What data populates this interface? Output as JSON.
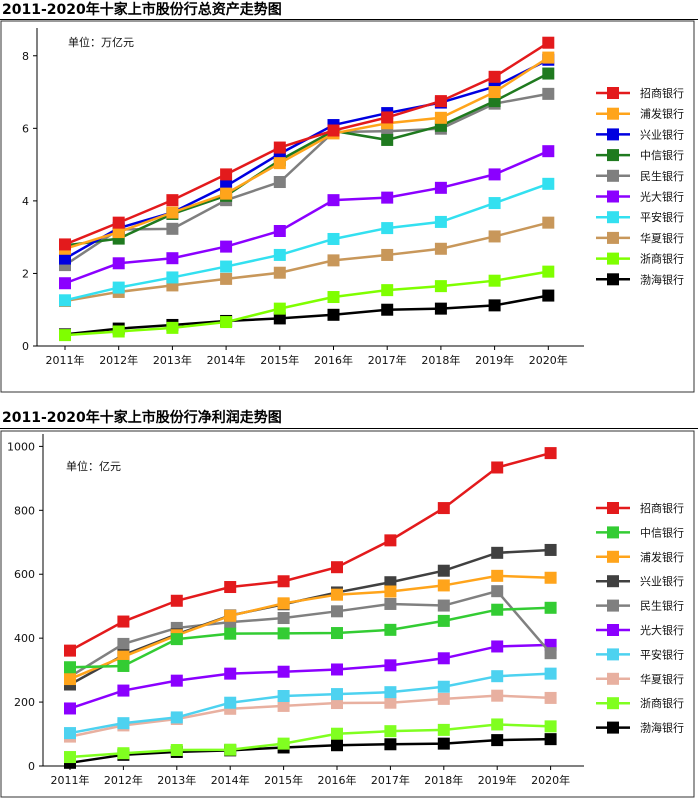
{
  "chart_data": [
    {
      "type": "line",
      "title": "2011-2020年十家上市股份行总资产走势图",
      "unit_label": "单位：万亿元",
      "categories": [
        "2011年",
        "2012年",
        "2013年",
        "2014年",
        "2015年",
        "2016年",
        "2017年",
        "2018年",
        "2019年",
        "2020年"
      ],
      "ylim": [
        0,
        8.6
      ],
      "yticks": [
        0,
        2,
        4,
        6,
        8
      ],
      "grid": false,
      "legend_position": "right",
      "series": [
        {
          "name": "招商银行",
          "color": "#e31a1c",
          "values": [
            2.8,
            3.4,
            4.02,
            4.73,
            5.47,
            5.94,
            6.3,
            6.75,
            7.42,
            8.36
          ]
        },
        {
          "name": "浦发银行",
          "color": "#ffa41b",
          "values": [
            2.68,
            3.14,
            3.68,
            4.2,
            5.04,
            5.86,
            6.14,
            6.29,
            7.0,
            7.95
          ]
        },
        {
          "name": "兴业银行",
          "color": "#0000e0",
          "values": [
            2.41,
            3.25,
            3.68,
            4.41,
            5.3,
            6.09,
            6.42,
            6.71,
            7.15,
            7.89
          ]
        },
        {
          "name": "中信银行",
          "color": "#1f7a1f",
          "values": [
            2.77,
            2.96,
            3.64,
            4.14,
            5.12,
            5.93,
            5.68,
            6.07,
            6.75,
            7.51
          ]
        },
        {
          "name": "民生银行",
          "color": "#7f7f7f",
          "values": [
            2.23,
            3.21,
            3.23,
            4.02,
            4.52,
            5.9,
            5.92,
            5.99,
            6.68,
            6.95
          ]
        },
        {
          "name": "光大银行",
          "color": "#8b00ff",
          "values": [
            1.73,
            2.28,
            2.42,
            2.74,
            3.17,
            4.02,
            4.09,
            4.36,
            4.73,
            5.37
          ]
        },
        {
          "name": "平安银行",
          "color": "#33e0f0",
          "values": [
            1.26,
            1.61,
            1.89,
            2.19,
            2.51,
            2.95,
            3.25,
            3.42,
            3.94,
            4.47
          ]
        },
        {
          "name": "华夏银行",
          "color": "#c8975a",
          "values": [
            1.24,
            1.49,
            1.67,
            1.85,
            2.02,
            2.36,
            2.51,
            2.68,
            3.02,
            3.4
          ]
        },
        {
          "name": "浙商银行",
          "color": "#7fff00",
          "values": [
            0.3,
            0.4,
            0.5,
            0.66,
            1.03,
            1.35,
            1.54,
            1.65,
            1.8,
            2.05
          ]
        },
        {
          "name": "渤海银行",
          "color": "#000000",
          "values": [
            0.32,
            0.48,
            0.58,
            0.69,
            0.76,
            0.86,
            1.0,
            1.03,
            1.12,
            1.39
          ]
        }
      ]
    },
    {
      "type": "line",
      "title": "2011-2020年十家上市股份行净利润走势图",
      "unit_label": "单位：亿元",
      "categories": [
        "2011年",
        "2012年",
        "2013年",
        "2014年",
        "2015年",
        "2016年",
        "2017年",
        "2018年",
        "2019年",
        "2020年"
      ],
      "ylim": [
        0,
        1020
      ],
      "yticks": [
        0,
        200,
        400,
        600,
        800,
        1000
      ],
      "grid": false,
      "legend_position": "right",
      "series": [
        {
          "name": "招商银行",
          "color": "#e31a1c",
          "values": [
            361,
            452,
            517,
            560,
            578,
            622,
            706,
            807,
            934,
            979
          ]
        },
        {
          "name": "中信银行",
          "color": "#33cc33",
          "values": [
            309,
            313,
            397,
            414,
            415,
            416,
            426,
            454,
            489,
            495
          ]
        },
        {
          "name": "浦发银行",
          "color": "#ffa41b",
          "values": [
            272,
            342,
            409,
            470,
            509,
            536,
            546,
            565,
            595,
            589
          ]
        },
        {
          "name": "兴业银行",
          "color": "#404040",
          "values": [
            255,
            347,
            412,
            471,
            506,
            543,
            575,
            611,
            667,
            676
          ]
        },
        {
          "name": "民生银行",
          "color": "#808080",
          "values": [
            280,
            382,
            432,
            450,
            463,
            484,
            507,
            502,
            547,
            353
          ]
        },
        {
          "name": "光大银行",
          "color": "#8b00ff",
          "values": [
            180,
            236,
            267,
            289,
            295,
            302,
            315,
            337,
            374,
            379
          ]
        },
        {
          "name": "平安银行",
          "color": "#4dd2f0",
          "values": [
            103,
            134,
            152,
            198,
            219,
            225,
            231,
            248,
            281,
            289
          ]
        },
        {
          "name": "华夏银行",
          "color": "#e8b0a0",
          "values": [
            92,
            127,
            147,
            179,
            188,
            197,
            198,
            210,
            220,
            213
          ]
        },
        {
          "name": "浙商银行",
          "color": "#80ff20",
          "values": [
            28,
            40,
            50,
            51,
            70,
            101,
            109,
            113,
            130,
            124
          ]
        },
        {
          "name": "渤海银行",
          "color": "#000000",
          "values": [
            10,
            35,
            44,
            49,
            58,
            65,
            68,
            70,
            81,
            84
          ]
        }
      ]
    }
  ]
}
